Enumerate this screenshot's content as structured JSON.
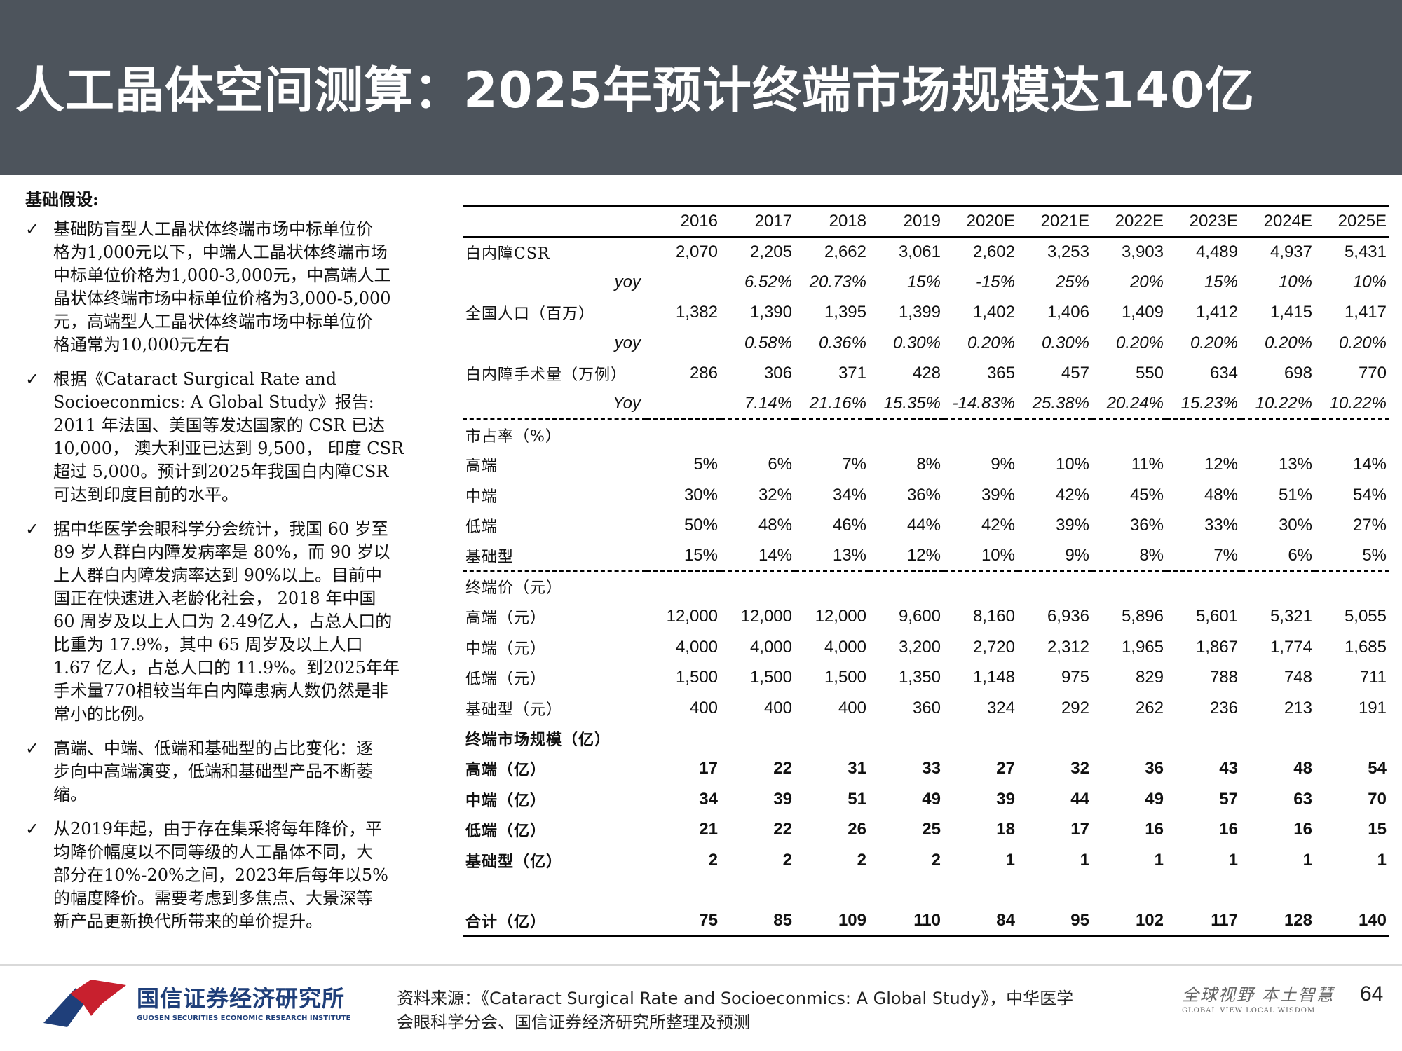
{
  "header": {
    "title": "人工晶体空间测算：2025年预计终端市场规模达140亿"
  },
  "left": {
    "heading": "基础假设:",
    "bullets": [
      {
        "lines": [
          "基础防盲型人工晶状体终端市场中标单位价",
          "格为1,000元以下，中端人工晶状体终端市场",
          "中标单位价格为1,000-3,000元，中高端人工",
          "晶状体终端市场中标单位价格为3,000-5,000",
          "元，高端型人工晶状体终端市场中标单位价",
          "格通常为10,000元左右"
        ]
      },
      {
        "lines": [
          "根据《Cataract Surgical Rate and",
          "Socioeconmics: A Global Study》报告:",
          "2011 年法国、美国等发达国家的 CSR 已达",
          "10,000， 澳大利亚已达到 9,500， 印度 CSR",
          "超过 5,000。预计到2025年我国白内障CSR",
          "可达到印度目前的水平。"
        ]
      },
      {
        "lines": [
          "据中华医学会眼科学分会统计，我国 60 岁至",
          "89 岁人群白内障发病率是 80%，而 90 岁以",
          "上人群白内障发病率达到 90%以上。目前中",
          "国正在快速进入老龄化社会， 2018 年中国",
          "60 周岁及以上人口为 2.49亿人，占总人口的",
          "比重为 17.9%，其中 65 周岁及以上人口",
          "1.67 亿人，占总人口的 11.9%。到2025年年",
          "手术量770相较当年白内障患病人数仍然是非",
          "常小的比例。"
        ]
      },
      {
        "lines": [
          "高端、中端、低端和基础型的占比变化：逐",
          "步向中高端演变，低端和基础型产品不断萎",
          "缩。"
        ]
      },
      {
        "lines": [
          "从2019年起，由于存在集采将每年降价，平",
          "均降价幅度以不同等级的人工晶体不同，大",
          "部分在10%-20%之间，2023年后每年以5%",
          "的幅度降价。需要考虑到多焦点、大景深等",
          "新产品更新换代所带来的单价提升。"
        ]
      }
    ]
  },
  "table": {
    "years": [
      "2016",
      "2017",
      "2018",
      "2019",
      "2020E",
      "2021E",
      "2022E",
      "2023E",
      "2024E",
      "2025E"
    ],
    "rows": [
      {
        "label": "白内障CSR",
        "values": [
          "2,070",
          "2,205",
          "2,662",
          "3,061",
          "2,602",
          "3,253",
          "3,903",
          "4,489",
          "4,937",
          "5,431"
        ],
        "style": "normal"
      },
      {
        "label": "yoy",
        "values": [
          "",
          "6.52%",
          "20.73%",
          "15%",
          "-15%",
          "25%",
          "20%",
          "15%",
          "10%",
          "10%"
        ],
        "style": "yoy"
      },
      {
        "label": "全国人口（百万）",
        "values": [
          "1,382",
          "1,390",
          "1,395",
          "1,399",
          "1,402",
          "1,406",
          "1,409",
          "1,412",
          "1,415",
          "1,417"
        ],
        "style": "normal"
      },
      {
        "label": "yoy",
        "values": [
          "",
          "0.58%",
          "0.36%",
          "0.30%",
          "0.20%",
          "0.30%",
          "0.20%",
          "0.20%",
          "0.20%",
          "0.20%"
        ],
        "style": "yoy"
      },
      {
        "label": "白内障手术量（万例）",
        "values": [
          "286",
          "306",
          "371",
          "428",
          "365",
          "457",
          "550",
          "634",
          "698",
          "770"
        ],
        "style": "normal"
      },
      {
        "label": "Yoy",
        "values": [
          "",
          "7.14%",
          "21.16%",
          "15.35%",
          "-14.83%",
          "25.38%",
          "20.24%",
          "15.23%",
          "10.22%",
          "10.22%"
        ],
        "style": "yoy-dash"
      },
      {
        "label": "市占率（%）",
        "values": [
          "",
          "",
          "",
          "",
          "",
          "",
          "",
          "",
          "",
          ""
        ],
        "style": "normal"
      },
      {
        "label": "高端",
        "values": [
          "5%",
          "6%",
          "7%",
          "8%",
          "9%",
          "10%",
          "11%",
          "12%",
          "13%",
          "14%"
        ],
        "style": "normal"
      },
      {
        "label": "中端",
        "values": [
          "30%",
          "32%",
          "34%",
          "36%",
          "39%",
          "42%",
          "45%",
          "48%",
          "51%",
          "54%"
        ],
        "style": "normal"
      },
      {
        "label": "低端",
        "values": [
          "50%",
          "48%",
          "46%",
          "44%",
          "42%",
          "39%",
          "36%",
          "33%",
          "30%",
          "27%"
        ],
        "style": "normal"
      },
      {
        "label": "基础型",
        "values": [
          "15%",
          "14%",
          "13%",
          "12%",
          "10%",
          "9%",
          "8%",
          "7%",
          "6%",
          "5%"
        ],
        "style": "dash"
      },
      {
        "label": "终端价（元）",
        "values": [
          "",
          "",
          "",
          "",
          "",
          "",
          "",
          "",
          "",
          ""
        ],
        "style": "normal"
      },
      {
        "label": "高端（元）",
        "values": [
          "12,000",
          "12,000",
          "12,000",
          "9,600",
          "8,160",
          "6,936",
          "5,896",
          "5,601",
          "5,321",
          "5,055"
        ],
        "style": "normal"
      },
      {
        "label": "中端（元）",
        "values": [
          "4,000",
          "4,000",
          "4,000",
          "3,200",
          "2,720",
          "2,312",
          "1,965",
          "1,867",
          "1,774",
          "1,685"
        ],
        "style": "normal"
      },
      {
        "label": "低端（元）",
        "values": [
          "1,500",
          "1,500",
          "1,500",
          "1,350",
          "1,148",
          "975",
          "829",
          "788",
          "748",
          "711"
        ],
        "style": "normal"
      },
      {
        "label": "基础型（元）",
        "values": [
          "400",
          "400",
          "400",
          "360",
          "324",
          "292",
          "262",
          "236",
          "213",
          "191"
        ],
        "style": "normal"
      },
      {
        "label": "终端市场规模（亿）",
        "values": [
          "",
          "",
          "",
          "",
          "",
          "",
          "",
          "",
          "",
          ""
        ],
        "style": "bold"
      },
      {
        "label": "高端（亿）",
        "values": [
          "17",
          "22",
          "31",
          "33",
          "27",
          "32",
          "36",
          "43",
          "48",
          "54"
        ],
        "style": "bold"
      },
      {
        "label": "中端（亿）",
        "values": [
          "34",
          "39",
          "51",
          "49",
          "39",
          "44",
          "49",
          "57",
          "63",
          "70"
        ],
        "style": "bold"
      },
      {
        "label": "低端（亿）",
        "values": [
          "21",
          "22",
          "26",
          "25",
          "18",
          "17",
          "16",
          "16",
          "16",
          "15"
        ],
        "style": "bold"
      },
      {
        "label": "基础型（亿）",
        "values": [
          "2",
          "2",
          "2",
          "2",
          "1",
          "1",
          "1",
          "1",
          "1",
          "1"
        ],
        "style": "bold"
      },
      {
        "label": "",
        "values": [
          "",
          "",
          "",
          "",
          "",
          "",
          "",
          "",
          "",
          ""
        ],
        "style": "spacer"
      },
      {
        "label": "合计（亿）",
        "values": [
          "75",
          "85",
          "109",
          "110",
          "84",
          "95",
          "102",
          "117",
          "128",
          "140"
        ],
        "style": "total"
      }
    ]
  },
  "footer": {
    "logo_cn": "国信证券经济研究所",
    "logo_en": "GUOSEN SECURITIES ECONOMIC RESEARCH INSTITUTE",
    "source_lines": [
      "资料来源：《Cataract Surgical Rate and Socioeconmics: A Global Study》，中华医学",
      "会眼科学分会、国信证券经济研究所整理及预测"
    ],
    "slogan_cn": "全球视野  本土智慧",
    "slogan_en": "GLOBAL VIEW   LOCAL WISDOM",
    "page_number": "64",
    "colors": {
      "header_bg": "#4d545c",
      "logo_red": "#c8202e",
      "logo_blue": "#1f3f7a"
    }
  }
}
